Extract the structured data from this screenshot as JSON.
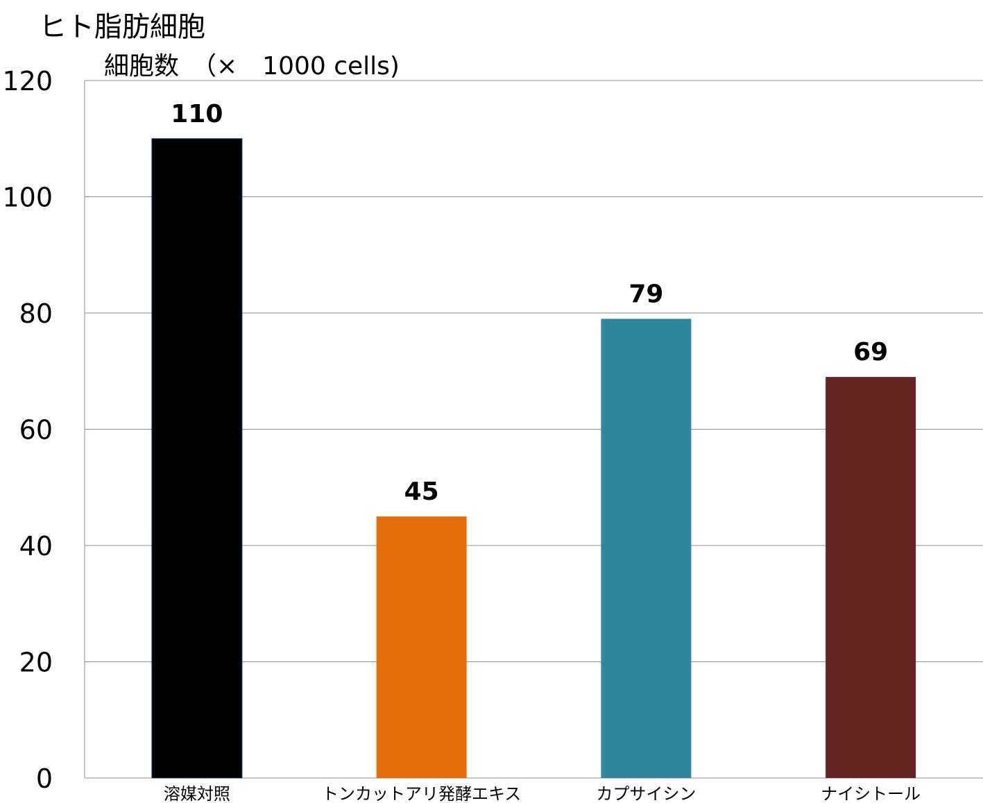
{
  "chart_data": {
    "type": "bar",
    "title": "ヒト脂肪細胞",
    "ylabel": "細胞数　（×　1000 cells)",
    "xlabel": "",
    "categories": [
      "溶媒対照",
      "トンカットアリ発酵エキス",
      "カプサイシン",
      "ナイシトール"
    ],
    "values": [
      110,
      45,
      79,
      69
    ],
    "data_labels": [
      "110",
      "45",
      "79",
      "69"
    ],
    "colors": [
      "#000000",
      "#e46c0a",
      "#31859c",
      "#632423"
    ],
    "ylim": [
      0,
      120
    ],
    "yticks": [
      0,
      20,
      40,
      60,
      80,
      100,
      120
    ],
    "grid": true,
    "legend": "none"
  }
}
